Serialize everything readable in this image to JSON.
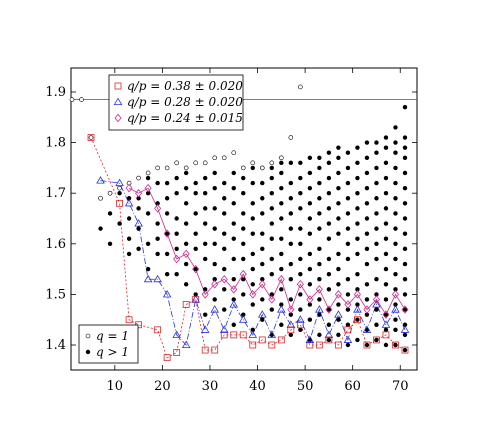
{
  "chart_data": {
    "type": "scatter",
    "title": "",
    "xlabel": "",
    "ylabel": "",
    "xlim": [
      0,
      72
    ],
    "ylim": [
      1.35,
      1.95
    ],
    "xticks": [
      "10",
      "20",
      "30",
      "40",
      "50",
      "60",
      "70"
    ],
    "yticks": [
      "1.4",
      "1.5",
      "1.6",
      "1.7",
      "1.8",
      "1.9"
    ],
    "reference_line_y": 1.885,
    "colors": {
      "red": "#d9262b",
      "blue": "#2832d6",
      "pink": "#cc2a8c",
      "black": "#000000"
    },
    "legend_top": {
      "position": "top-left",
      "entries": [
        {
          "marker": "square",
          "label": "q/p = 0.38 ± 0.020"
        },
        {
          "marker": "triangle",
          "label": "q/p = 0.28 ± 0.020"
        },
        {
          "marker": "diamond",
          "label": "q/p = 0.24 ± 0.015"
        }
      ]
    },
    "legend_bottom": {
      "position": "bottom-left",
      "entries": [
        {
          "marker": "open-circle",
          "label": "q = 1"
        },
        {
          "marker": "filled-circle",
          "label": "q > 1"
        }
      ]
    },
    "series": [
      {
        "name": "q = 1",
        "marker": "open-circle",
        "x": [
          1,
          3,
          5,
          7,
          9,
          11,
          13,
          15,
          17,
          19,
          21,
          23,
          25,
          27,
          29,
          31,
          33,
          35,
          37,
          39,
          41,
          43,
          45,
          47,
          49
        ],
        "y": [
          1.885,
          1.885,
          1.81,
          1.69,
          1.7,
          1.71,
          1.72,
          1.73,
          1.74,
          1.75,
          1.75,
          1.76,
          1.75,
          1.76,
          1.76,
          1.77,
          1.77,
          1.78,
          1.75,
          1.76,
          1.75,
          1.76,
          1.77,
          1.81,
          1.91
        ]
      },
      {
        "name": "q/p = 0.38 ± 0.020",
        "marker": "square",
        "x": [
          5,
          11,
          13,
          15,
          19,
          21,
          23,
          25,
          27,
          29,
          31,
          33,
          35,
          37,
          39,
          41,
          43,
          45,
          47,
          49,
          51,
          53,
          55,
          57,
          59,
          61,
          63,
          65,
          67,
          69,
          71
        ],
        "y": [
          1.81,
          1.68,
          1.45,
          1.44,
          1.43,
          1.375,
          1.385,
          1.48,
          1.49,
          1.39,
          1.39,
          1.42,
          1.42,
          1.42,
          1.4,
          1.41,
          1.4,
          1.41,
          1.43,
          1.44,
          1.4,
          1.4,
          1.41,
          1.4,
          1.43,
          1.45,
          1.4,
          1.41,
          1.42,
          1.4,
          1.39
        ]
      },
      {
        "name": "q/p = 0.28 ± 0.020",
        "marker": "triangle",
        "x": [
          7,
          11,
          13,
          15,
          17,
          19,
          21,
          23,
          25,
          27,
          29,
          31,
          33,
          35,
          37,
          39,
          41,
          43,
          45,
          47,
          49,
          51,
          53,
          55,
          57,
          59,
          61,
          63,
          65,
          67,
          69,
          71
        ],
        "y": [
          1.725,
          1.72,
          1.68,
          1.64,
          1.53,
          1.53,
          1.5,
          1.42,
          1.4,
          1.49,
          1.43,
          1.47,
          1.43,
          1.48,
          1.45,
          1.42,
          1.46,
          1.42,
          1.47,
          1.44,
          1.45,
          1.41,
          1.47,
          1.42,
          1.46,
          1.41,
          1.47,
          1.43,
          1.48,
          1.44,
          1.47,
          1.43
        ]
      },
      {
        "name": "q/p = 0.24 ± 0.015",
        "marker": "diamond",
        "x": [
          13,
          15,
          17,
          19,
          21,
          23,
          25,
          27,
          29,
          31,
          33,
          35,
          37,
          39,
          41,
          43,
          45,
          47,
          49,
          51,
          53,
          55,
          57,
          59,
          61,
          63,
          65,
          67,
          69,
          71
        ],
        "y": [
          1.71,
          1.7,
          1.71,
          1.67,
          1.62,
          1.57,
          1.58,
          1.55,
          1.5,
          1.52,
          1.53,
          1.51,
          1.54,
          1.5,
          1.52,
          1.49,
          1.53,
          1.47,
          1.52,
          1.49,
          1.51,
          1.47,
          1.5,
          1.48,
          1.5,
          1.47,
          1.49,
          1.46,
          1.5,
          1.47
        ]
      },
      {
        "name": "q > 1",
        "marker": "filled-circle",
        "x": [
          7,
          9,
          11,
          13,
          15,
          17,
          19,
          21,
          23,
          25,
          27,
          29,
          31,
          33,
          35,
          37,
          39,
          41,
          43,
          45,
          47,
          49,
          51,
          53,
          55,
          57,
          59,
          61,
          63,
          65,
          67,
          69,
          71
        ],
        "columns": [
          [
            1.63,
            1.69
          ],
          [
            1.6,
            1.7,
            1.66
          ],
          [
            1.64,
            1.7
          ],
          [
            1.58,
            1.61,
            1.65,
            1.69
          ],
          [
            1.59,
            1.63,
            1.67,
            1.69
          ],
          [
            1.55,
            1.6,
            1.66,
            1.7,
            1.73
          ],
          [
            1.58,
            1.61,
            1.64,
            1.68,
            1.72
          ],
          [
            1.54,
            1.58,
            1.62,
            1.66,
            1.69,
            1.72
          ],
          [
            1.54,
            1.59,
            1.62,
            1.65,
            1.7,
            1.73
          ],
          [
            1.52,
            1.56,
            1.6,
            1.64,
            1.68,
            1.71,
            1.74
          ],
          [
            1.5,
            1.55,
            1.59,
            1.62,
            1.66,
            1.7,
            1.72
          ],
          [
            1.46,
            1.51,
            1.57,
            1.6,
            1.64,
            1.67,
            1.7,
            1.73
          ],
          [
            1.49,
            1.53,
            1.56,
            1.6,
            1.63,
            1.67,
            1.71,
            1.74
          ],
          [
            1.47,
            1.51,
            1.55,
            1.59,
            1.62,
            1.66,
            1.69,
            1.72
          ],
          [
            1.44,
            1.49,
            1.53,
            1.57,
            1.61,
            1.64,
            1.68,
            1.71,
            1.74
          ],
          [
            1.46,
            1.5,
            1.53,
            1.57,
            1.6,
            1.63,
            1.66,
            1.7,
            1.73
          ],
          [
            1.43,
            1.48,
            1.52,
            1.55,
            1.58,
            1.62,
            1.65,
            1.68,
            1.72,
            1.75
          ],
          [
            1.45,
            1.49,
            1.53,
            1.56,
            1.59,
            1.62,
            1.66,
            1.69,
            1.72,
            1.75
          ],
          [
            1.42,
            1.47,
            1.5,
            1.54,
            1.57,
            1.61,
            1.64,
            1.67,
            1.7,
            1.73,
            1.75
          ],
          [
            1.44,
            1.48,
            1.51,
            1.55,
            1.58,
            1.61,
            1.65,
            1.68,
            1.71,
            1.74,
            1.76
          ],
          [
            1.42,
            1.46,
            1.49,
            1.53,
            1.56,
            1.6,
            1.63,
            1.66,
            1.69,
            1.72,
            1.76
          ],
          [
            1.43,
            1.47,
            1.5,
            1.54,
            1.57,
            1.6,
            1.63,
            1.67,
            1.7,
            1.73,
            1.76
          ],
          [
            1.41,
            1.45,
            1.48,
            1.52,
            1.55,
            1.58,
            1.62,
            1.65,
            1.68,
            1.71,
            1.74,
            1.77
          ],
          [
            1.42,
            1.46,
            1.49,
            1.53,
            1.56,
            1.59,
            1.63,
            1.66,
            1.69,
            1.72,
            1.75,
            1.77
          ],
          [
            1.41,
            1.44,
            1.47,
            1.51,
            1.54,
            1.57,
            1.61,
            1.64,
            1.67,
            1.7,
            1.73,
            1.76,
            1.78
          ],
          [
            1.42,
            1.45,
            1.48,
            1.52,
            1.55,
            1.58,
            1.62,
            1.65,
            1.68,
            1.71,
            1.74,
            1.77,
            1.79
          ],
          [
            1.4,
            1.44,
            1.47,
            1.5,
            1.53,
            1.57,
            1.6,
            1.63,
            1.66,
            1.69,
            1.72,
            1.75,
            1.78
          ],
          [
            1.41,
            1.45,
            1.48,
            1.51,
            1.54,
            1.58,
            1.61,
            1.64,
            1.67,
            1.7,
            1.73,
            1.76,
            1.79
          ],
          [
            1.4,
            1.43,
            1.46,
            1.49,
            1.52,
            1.56,
            1.59,
            1.62,
            1.65,
            1.68,
            1.71,
            1.74,
            1.77,
            1.8
          ],
          [
            1.41,
            1.44,
            1.47,
            1.5,
            1.53,
            1.57,
            1.6,
            1.63,
            1.66,
            1.69,
            1.72,
            1.75,
            1.78,
            1.8
          ],
          [
            1.4,
            1.43,
            1.46,
            1.49,
            1.52,
            1.55,
            1.58,
            1.61,
            1.64,
            1.67,
            1.7,
            1.73,
            1.76,
            1.79,
            1.81
          ],
          [
            1.4,
            1.43,
            1.45,
            1.48,
            1.51,
            1.54,
            1.57,
            1.6,
            1.63,
            1.66,
            1.69,
            1.72,
            1.75,
            1.78,
            1.8,
            1.83
          ],
          [
            1.39,
            1.42,
            1.44,
            1.47,
            1.5,
            1.53,
            1.56,
            1.59,
            1.62,
            1.65,
            1.68,
            1.71,
            1.74,
            1.77,
            1.79,
            1.81,
            1.87
          ]
        ]
      }
    ]
  }
}
